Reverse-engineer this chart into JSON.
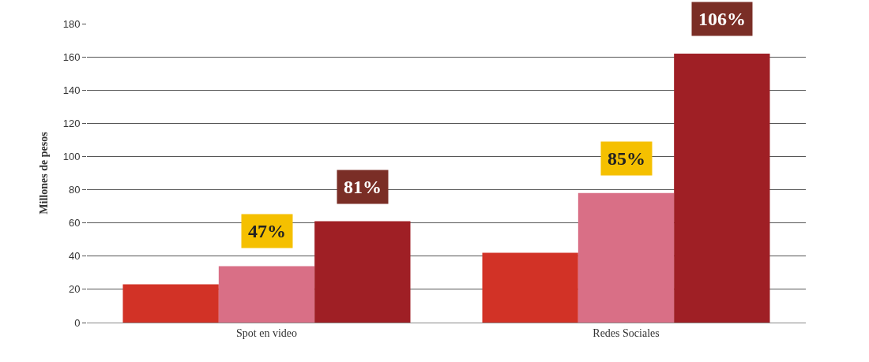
{
  "chart_data": {
    "type": "bar",
    "ylabel": "Millones de pesos",
    "categories": [
      "Spot en video",
      "Redes Sociales"
    ],
    "series": [
      {
        "color": "#d23226",
        "values": [
          23,
          42
        ]
      },
      {
        "color": "#d96f86",
        "values": [
          34,
          78
        ]
      },
      {
        "color": "#9f1f25",
        "values": [
          61,
          162
        ]
      }
    ],
    "ylim": [
      0,
      180
    ],
    "yticks": [
      0,
      20,
      40,
      60,
      80,
      100,
      120,
      140,
      160,
      180
    ],
    "grid": "y",
    "annotations": [
      "47%",
      "81%",
      "85%",
      "106%"
    ]
  }
}
